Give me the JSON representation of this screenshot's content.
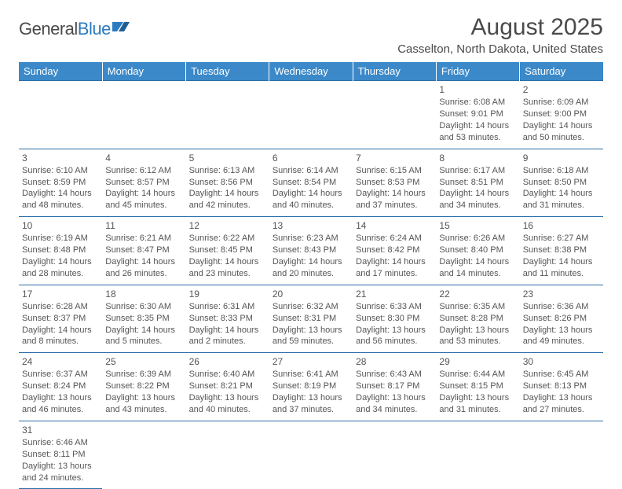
{
  "logo": {
    "part1": "General",
    "part2": "Blue"
  },
  "title": "August 2025",
  "subtitle": "Casselton, North Dakota, United States",
  "colors": {
    "header_bg": "#3b89c9",
    "header_text": "#ffffff",
    "cell_border": "#2a6fa8",
    "text": "#4a4a4a",
    "logo_blue": "#2a7bbf"
  },
  "day_headers": [
    "Sunday",
    "Monday",
    "Tuesday",
    "Wednesday",
    "Thursday",
    "Friday",
    "Saturday"
  ],
  "weeks": [
    [
      null,
      null,
      null,
      null,
      null,
      {
        "d": "1",
        "sr": "Sunrise: 6:08 AM",
        "ss": "Sunset: 9:01 PM",
        "dl1": "Daylight: 14 hours",
        "dl2": "and 53 minutes."
      },
      {
        "d": "2",
        "sr": "Sunrise: 6:09 AM",
        "ss": "Sunset: 9:00 PM",
        "dl1": "Daylight: 14 hours",
        "dl2": "and 50 minutes."
      }
    ],
    [
      {
        "d": "3",
        "sr": "Sunrise: 6:10 AM",
        "ss": "Sunset: 8:59 PM",
        "dl1": "Daylight: 14 hours",
        "dl2": "and 48 minutes."
      },
      {
        "d": "4",
        "sr": "Sunrise: 6:12 AM",
        "ss": "Sunset: 8:57 PM",
        "dl1": "Daylight: 14 hours",
        "dl2": "and 45 minutes."
      },
      {
        "d": "5",
        "sr": "Sunrise: 6:13 AM",
        "ss": "Sunset: 8:56 PM",
        "dl1": "Daylight: 14 hours",
        "dl2": "and 42 minutes."
      },
      {
        "d": "6",
        "sr": "Sunrise: 6:14 AM",
        "ss": "Sunset: 8:54 PM",
        "dl1": "Daylight: 14 hours",
        "dl2": "and 40 minutes."
      },
      {
        "d": "7",
        "sr": "Sunrise: 6:15 AM",
        "ss": "Sunset: 8:53 PM",
        "dl1": "Daylight: 14 hours",
        "dl2": "and 37 minutes."
      },
      {
        "d": "8",
        "sr": "Sunrise: 6:17 AM",
        "ss": "Sunset: 8:51 PM",
        "dl1": "Daylight: 14 hours",
        "dl2": "and 34 minutes."
      },
      {
        "d": "9",
        "sr": "Sunrise: 6:18 AM",
        "ss": "Sunset: 8:50 PM",
        "dl1": "Daylight: 14 hours",
        "dl2": "and 31 minutes."
      }
    ],
    [
      {
        "d": "10",
        "sr": "Sunrise: 6:19 AM",
        "ss": "Sunset: 8:48 PM",
        "dl1": "Daylight: 14 hours",
        "dl2": "and 28 minutes."
      },
      {
        "d": "11",
        "sr": "Sunrise: 6:21 AM",
        "ss": "Sunset: 8:47 PM",
        "dl1": "Daylight: 14 hours",
        "dl2": "and 26 minutes."
      },
      {
        "d": "12",
        "sr": "Sunrise: 6:22 AM",
        "ss": "Sunset: 8:45 PM",
        "dl1": "Daylight: 14 hours",
        "dl2": "and 23 minutes."
      },
      {
        "d": "13",
        "sr": "Sunrise: 6:23 AM",
        "ss": "Sunset: 8:43 PM",
        "dl1": "Daylight: 14 hours",
        "dl2": "and 20 minutes."
      },
      {
        "d": "14",
        "sr": "Sunrise: 6:24 AM",
        "ss": "Sunset: 8:42 PM",
        "dl1": "Daylight: 14 hours",
        "dl2": "and 17 minutes."
      },
      {
        "d": "15",
        "sr": "Sunrise: 6:26 AM",
        "ss": "Sunset: 8:40 PM",
        "dl1": "Daylight: 14 hours",
        "dl2": "and 14 minutes."
      },
      {
        "d": "16",
        "sr": "Sunrise: 6:27 AM",
        "ss": "Sunset: 8:38 PM",
        "dl1": "Daylight: 14 hours",
        "dl2": "and 11 minutes."
      }
    ],
    [
      {
        "d": "17",
        "sr": "Sunrise: 6:28 AM",
        "ss": "Sunset: 8:37 PM",
        "dl1": "Daylight: 14 hours",
        "dl2": "and 8 minutes."
      },
      {
        "d": "18",
        "sr": "Sunrise: 6:30 AM",
        "ss": "Sunset: 8:35 PM",
        "dl1": "Daylight: 14 hours",
        "dl2": "and 5 minutes."
      },
      {
        "d": "19",
        "sr": "Sunrise: 6:31 AM",
        "ss": "Sunset: 8:33 PM",
        "dl1": "Daylight: 14 hours",
        "dl2": "and 2 minutes."
      },
      {
        "d": "20",
        "sr": "Sunrise: 6:32 AM",
        "ss": "Sunset: 8:31 PM",
        "dl1": "Daylight: 13 hours",
        "dl2": "and 59 minutes."
      },
      {
        "d": "21",
        "sr": "Sunrise: 6:33 AM",
        "ss": "Sunset: 8:30 PM",
        "dl1": "Daylight: 13 hours",
        "dl2": "and 56 minutes."
      },
      {
        "d": "22",
        "sr": "Sunrise: 6:35 AM",
        "ss": "Sunset: 8:28 PM",
        "dl1": "Daylight: 13 hours",
        "dl2": "and 53 minutes."
      },
      {
        "d": "23",
        "sr": "Sunrise: 6:36 AM",
        "ss": "Sunset: 8:26 PM",
        "dl1": "Daylight: 13 hours",
        "dl2": "and 49 minutes."
      }
    ],
    [
      {
        "d": "24",
        "sr": "Sunrise: 6:37 AM",
        "ss": "Sunset: 8:24 PM",
        "dl1": "Daylight: 13 hours",
        "dl2": "and 46 minutes."
      },
      {
        "d": "25",
        "sr": "Sunrise: 6:39 AM",
        "ss": "Sunset: 8:22 PM",
        "dl1": "Daylight: 13 hours",
        "dl2": "and 43 minutes."
      },
      {
        "d": "26",
        "sr": "Sunrise: 6:40 AM",
        "ss": "Sunset: 8:21 PM",
        "dl1": "Daylight: 13 hours",
        "dl2": "and 40 minutes."
      },
      {
        "d": "27",
        "sr": "Sunrise: 6:41 AM",
        "ss": "Sunset: 8:19 PM",
        "dl1": "Daylight: 13 hours",
        "dl2": "and 37 minutes."
      },
      {
        "d": "28",
        "sr": "Sunrise: 6:43 AM",
        "ss": "Sunset: 8:17 PM",
        "dl1": "Daylight: 13 hours",
        "dl2": "and 34 minutes."
      },
      {
        "d": "29",
        "sr": "Sunrise: 6:44 AM",
        "ss": "Sunset: 8:15 PM",
        "dl1": "Daylight: 13 hours",
        "dl2": "and 31 minutes."
      },
      {
        "d": "30",
        "sr": "Sunrise: 6:45 AM",
        "ss": "Sunset: 8:13 PM",
        "dl1": "Daylight: 13 hours",
        "dl2": "and 27 minutes."
      }
    ],
    [
      {
        "d": "31",
        "sr": "Sunrise: 6:46 AM",
        "ss": "Sunset: 8:11 PM",
        "dl1": "Daylight: 13 hours",
        "dl2": "and 24 minutes."
      },
      null,
      null,
      null,
      null,
      null,
      null
    ]
  ]
}
